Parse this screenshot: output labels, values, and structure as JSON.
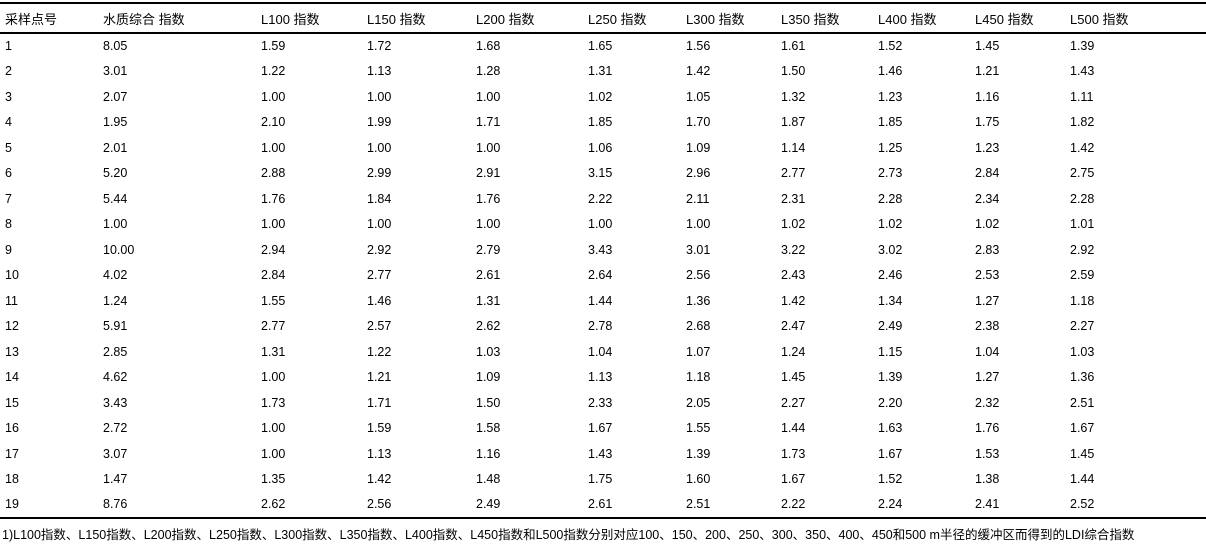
{
  "table": {
    "columns": [
      "采样点号",
      "水质综合 指数",
      "L100 指数",
      "L150 指数",
      "L200 指数",
      "L250 指数",
      "L300 指数",
      "L350 指数",
      "L400 指数",
      "L450 指数",
      "L500 指数"
    ],
    "rows": [
      [
        "1",
        "8.05",
        "1.59",
        "1.72",
        "1.68",
        "1.65",
        "1.56",
        "1.61",
        "1.52",
        "1.45",
        "1.39"
      ],
      [
        "2",
        "3.01",
        "1.22",
        "1.13",
        "1.28",
        "1.31",
        "1.42",
        "1.50",
        "1.46",
        "1.21",
        "1.43"
      ],
      [
        "3",
        "2.07",
        "1.00",
        "1.00",
        "1.00",
        "1.02",
        "1.05",
        "1.32",
        "1.23",
        "1.16",
        "1.11"
      ],
      [
        "4",
        "1.95",
        "2.10",
        "1.99",
        "1.71",
        "1.85",
        "1.70",
        "1.87",
        "1.85",
        "1.75",
        "1.82"
      ],
      [
        "5",
        "2.01",
        "1.00",
        "1.00",
        "1.00",
        "1.06",
        "1.09",
        "1.14",
        "1.25",
        "1.23",
        "1.42"
      ],
      [
        "6",
        "5.20",
        "2.88",
        "2.99",
        "2.91",
        "3.15",
        "2.96",
        "2.77",
        "2.73",
        "2.84",
        "2.75"
      ],
      [
        "7",
        "5.44",
        "1.76",
        "1.84",
        "1.76",
        "2.22",
        "2.11",
        "2.31",
        "2.28",
        "2.34",
        "2.28"
      ],
      [
        "8",
        "1.00",
        "1.00",
        "1.00",
        "1.00",
        "1.00",
        "1.00",
        "1.02",
        "1.02",
        "1.02",
        "1.01"
      ],
      [
        "9",
        "10.00",
        "2.94",
        "2.92",
        "2.79",
        "3.43",
        "3.01",
        "3.22",
        "3.02",
        "2.83",
        "2.92"
      ],
      [
        "10",
        "4.02",
        "2.84",
        "2.77",
        "2.61",
        "2.64",
        "2.56",
        "2.43",
        "2.46",
        "2.53",
        "2.59"
      ],
      [
        "11",
        "1.24",
        "1.55",
        "1.46",
        "1.31",
        "1.44",
        "1.36",
        "1.42",
        "1.34",
        "1.27",
        "1.18"
      ],
      [
        "12",
        "5.91",
        "2.77",
        "2.57",
        "2.62",
        "2.78",
        "2.68",
        "2.47",
        "2.49",
        "2.38",
        "2.27"
      ],
      [
        "13",
        "2.85",
        "1.31",
        "1.22",
        "1.03",
        "1.04",
        "1.07",
        "1.24",
        "1.15",
        "1.04",
        "1.03"
      ],
      [
        "14",
        "4.62",
        "1.00",
        "1.21",
        "1.09",
        "1.13",
        "1.18",
        "1.45",
        "1.39",
        "1.27",
        "1.36"
      ],
      [
        "15",
        "3.43",
        "1.73",
        "1.71",
        "1.50",
        "2.33",
        "2.05",
        "2.27",
        "2.20",
        "2.32",
        "2.51"
      ],
      [
        "16",
        "2.72",
        "1.00",
        "1.59",
        "1.58",
        "1.67",
        "1.55",
        "1.44",
        "1.63",
        "1.76",
        "1.67"
      ],
      [
        "17",
        "3.07",
        "1.00",
        "1.13",
        "1.16",
        "1.43",
        "1.39",
        "1.73",
        "1.67",
        "1.53",
        "1.45"
      ],
      [
        "18",
        "1.47",
        "1.35",
        "1.42",
        "1.48",
        "1.75",
        "1.60",
        "1.67",
        "1.52",
        "1.38",
        "1.44"
      ],
      [
        "19",
        "8.76",
        "2.62",
        "2.56",
        "2.49",
        "2.61",
        "2.51",
        "2.22",
        "2.24",
        "2.41",
        "2.52"
      ]
    ],
    "footnote": "1)L100指数、L150指数、L200指数、L250指数、L300指数、L350指数、L400指数、L450指数和L500指数分别对应100、150、200、250、300、350、400、450和500 m半径的缓冲区而得到的LDI综合指数"
  },
  "colors": {
    "text": "#000000",
    "background": "#ffffff",
    "rule": "#000000"
  }
}
